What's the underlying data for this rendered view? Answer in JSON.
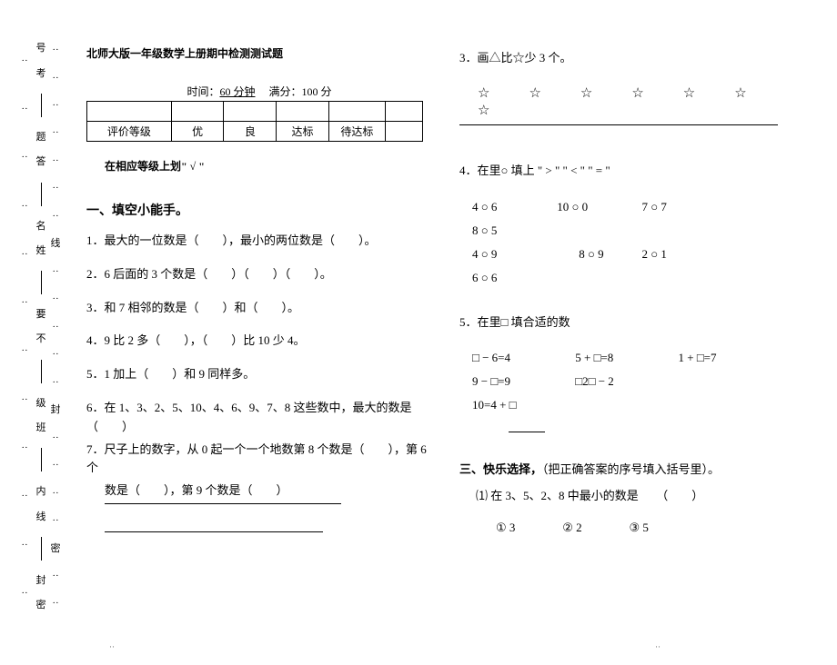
{
  "margin": {
    "c1_items": [
      "··",
      "··",
      "··",
      "··",
      "··",
      "··",
      "··",
      "线",
      "··",
      "··",
      "··",
      "··",
      "··",
      "封",
      "··",
      "··",
      "··",
      "··",
      "密",
      "··",
      "··"
    ],
    "c2_items": [
      "号",
      "考",
      "题",
      "答",
      "名",
      "姓",
      "要",
      "不",
      "级",
      "班",
      "内",
      "线",
      "封",
      "密"
    ],
    "c3_items": [
      "··",
      "··",
      "··",
      "··",
      "··",
      "··",
      "··",
      "··",
      "··",
      "··",
      "··",
      "··"
    ]
  },
  "header": {
    "title": "北师大版一年级数学上册期中检测测试题",
    "time_label": "时间：",
    "time_value": "60 分钟",
    "score_label": "满分：",
    "score_value": "100 分"
  },
  "eval_table": {
    "r2c1": "评价等级",
    "r2c2": "优",
    "r2c3": "良",
    "r2c4": "达标",
    "r2c5": "待达标"
  },
  "instruction": "在相应等级上划\" √ \"",
  "section1": {
    "heading": "一、填空小能手。",
    "q1": "1．最大的一位数是（　　），最小的两位数是（　　）。",
    "q2": "2．6 后面的 3 个数是（　　）（　　）（　　）。",
    "q3": "3．和 7 相邻的数是（　　）和（　　）。",
    "q4": "4．9 比 2 多（　　），（　　）比 10 少 4。",
    "q5": "5．1 加上（　　）和 9 同样多。",
    "q6": "6．在 1、3、2、5、10、4、6、9、7、8 这些数中，最大的数是（　　）",
    "q7": "7．尺子上的数字，从 0 起一个一个地数第 8 个数是（　　），第 6 个",
    "q7b": "数是（　　），第 9 个数是（　　）"
  },
  "right": {
    "q3_title": "3．画△比☆少 3 个。",
    "stars": "☆　☆　☆　☆　☆　☆　☆",
    "q4_title": "4．在里○ 填上 \" > \"  \" < \"  \" = \"",
    "cmp": [
      [
        "4 ○ 6",
        "10 ○ 0",
        "7 ○ 7",
        "8 ○ 5"
      ],
      [
        "4 ○ 9",
        "8 ○ 9",
        "2 ○ 1",
        "6 ○ 6"
      ]
    ],
    "q5_title": "5．在里□ 填合适的数",
    "boxes": [
      [
        "□ − 6=4",
        "5 + □=8",
        "1 + □=7"
      ],
      [
        "9 − □=9",
        "□2□  − 2",
        ""
      ],
      [
        "10=4 + □",
        "",
        ""
      ]
    ],
    "sec3_heading": "三、快乐选择，",
    "sec3_tail": "（把正确答案的序号填入括号里）。",
    "sec3_q1": "⑴ 在 3、5、2、8 中最小的数是　　（　　）",
    "opts": [
      "① 3",
      "② 2",
      "③ 5"
    ]
  },
  "footer": {
    "mark": "··"
  }
}
